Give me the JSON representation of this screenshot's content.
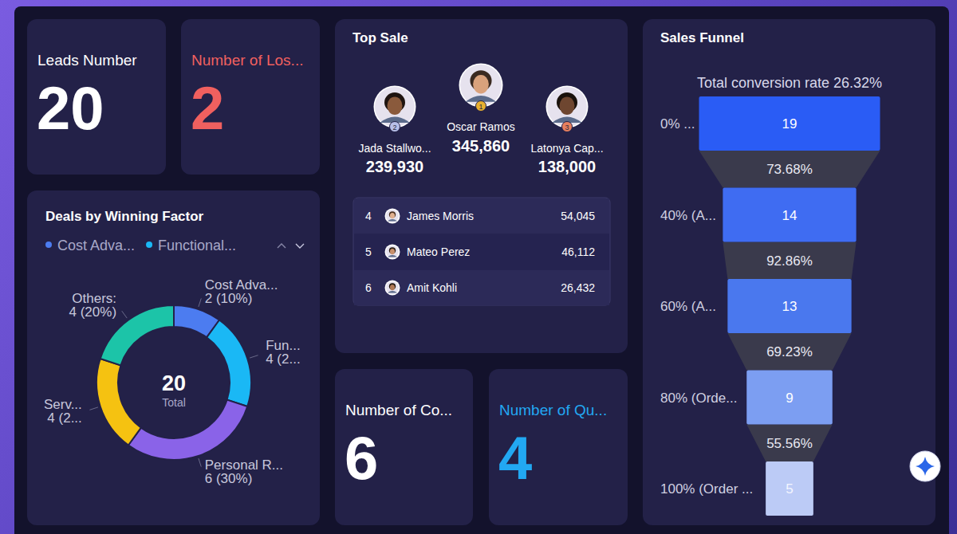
{
  "kpis": [
    {
      "title": "Leads Number",
      "value": 20,
      "color": "#ffffff"
    },
    {
      "title": "Number of Los...",
      "value": 2,
      "color": "#f0605f"
    },
    {
      "title": "Number of Co...",
      "value": 6,
      "color": "#ffffff"
    },
    {
      "title": "Number of Qu...",
      "value": 4,
      "color": "#22a8f2"
    }
  ],
  "top_sale": {
    "title": "Top Sale",
    "podium": [
      {
        "rank": 1,
        "name": "Oscar Ramos",
        "value": {
          "value": 345860,
          "label": "345,860"
        }
      },
      {
        "rank": 2,
        "name": "Jada Stallwo...",
        "value": {
          "value": 239930,
          "label": "239,930"
        }
      },
      {
        "rank": 3,
        "name": "Latonya Cap...",
        "value": {
          "value": 138000,
          "label": "138,000"
        }
      }
    ],
    "list": [
      {
        "rank": 4,
        "name": "James Morris",
        "value": {
          "value": 54045,
          "label": "54,045"
        }
      },
      {
        "rank": 5,
        "name": "Mateo Perez",
        "value": {
          "value": 46112,
          "label": "46,112"
        }
      },
      {
        "rank": 6,
        "name": "Amit Kohli",
        "value": {
          "value": 26432,
          "label": "26,432"
        }
      }
    ]
  },
  "chart_data": [
    {
      "type": "donut",
      "title": "Deals by Winning Factor",
      "categories": [
        "Cost Adva...",
        "Fun...",
        "Personal R...",
        "Serv...",
        "Others:"
      ],
      "values": [
        2,
        4,
        6,
        4,
        4
      ],
      "value_labels": [
        "2 (10%)",
        "4 (2...",
        "6 (30%)",
        "4 (2...",
        "4 (20%)"
      ],
      "colors": [
        "#4c7cf0",
        "#1ab8f5",
        "#8a63e8",
        "#f5c211",
        "#1cc4a8"
      ],
      "legend_labels": [
        "Cost Adva...",
        "Functional..."
      ],
      "legend": "top",
      "center_value": 20,
      "center_label": "Total",
      "data_labels": true
    },
    {
      "type": "funnel",
      "title": "Sales Funnel",
      "subtitle": "Total conversion rate 26.32%",
      "categories": [
        "0% ...",
        "40% (A...",
        "60% (A...",
        "80% (Orde...",
        "100% (Order ..."
      ],
      "values": [
        19,
        14,
        13,
        9,
        5
      ],
      "colors": [
        "#2a5cf5",
        "#3f6cf2",
        "#4a78ee",
        "#7c9ef2",
        "#bccbf6"
      ],
      "xlim": [
        0,
        19
      ],
      "data_labels": true,
      "conversion_rates": [
        {
          "value": 73.68,
          "label": "73.68%"
        },
        {
          "value": 92.86,
          "label": "92.86%"
        },
        {
          "value": 69.23,
          "label": "69.23%"
        },
        {
          "value": 55.56,
          "label": "55.56%"
        }
      ]
    }
  ]
}
